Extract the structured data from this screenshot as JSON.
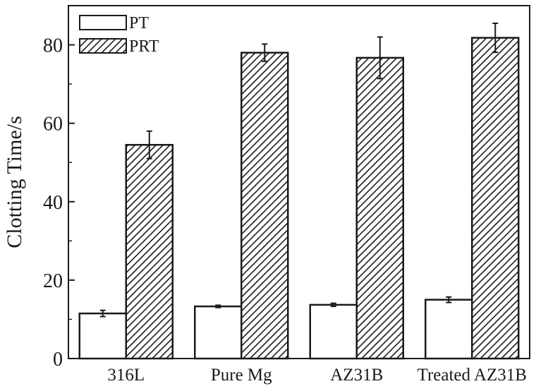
{
  "chart_data": {
    "type": "bar",
    "title": "",
    "xlabel": "",
    "ylabel": "Clotting Time/s",
    "ylim": [
      0,
      90
    ],
    "yticks": [
      0,
      20,
      40,
      60,
      80
    ],
    "categories": [
      "316L",
      "Pure Mg",
      "AZ31B",
      "Treated AZ31B"
    ],
    "series": [
      {
        "name": "PT",
        "pattern": "none",
        "values": [
          11.5,
          13.3,
          13.7,
          15.0
        ],
        "errors": [
          0.8,
          0.3,
          0.4,
          0.7
        ]
      },
      {
        "name": "PRT",
        "pattern": "hatch",
        "values": [
          54.5,
          78.0,
          76.7,
          81.8
        ],
        "errors": [
          3.5,
          2.2,
          5.3,
          3.7
        ]
      }
    ],
    "legend_position": "top-left",
    "grid": false,
    "colors": {
      "bar_stroke": "#1a1a1a",
      "bar_fill": "#ffffff",
      "hatch": "#1a1a1a"
    }
  }
}
